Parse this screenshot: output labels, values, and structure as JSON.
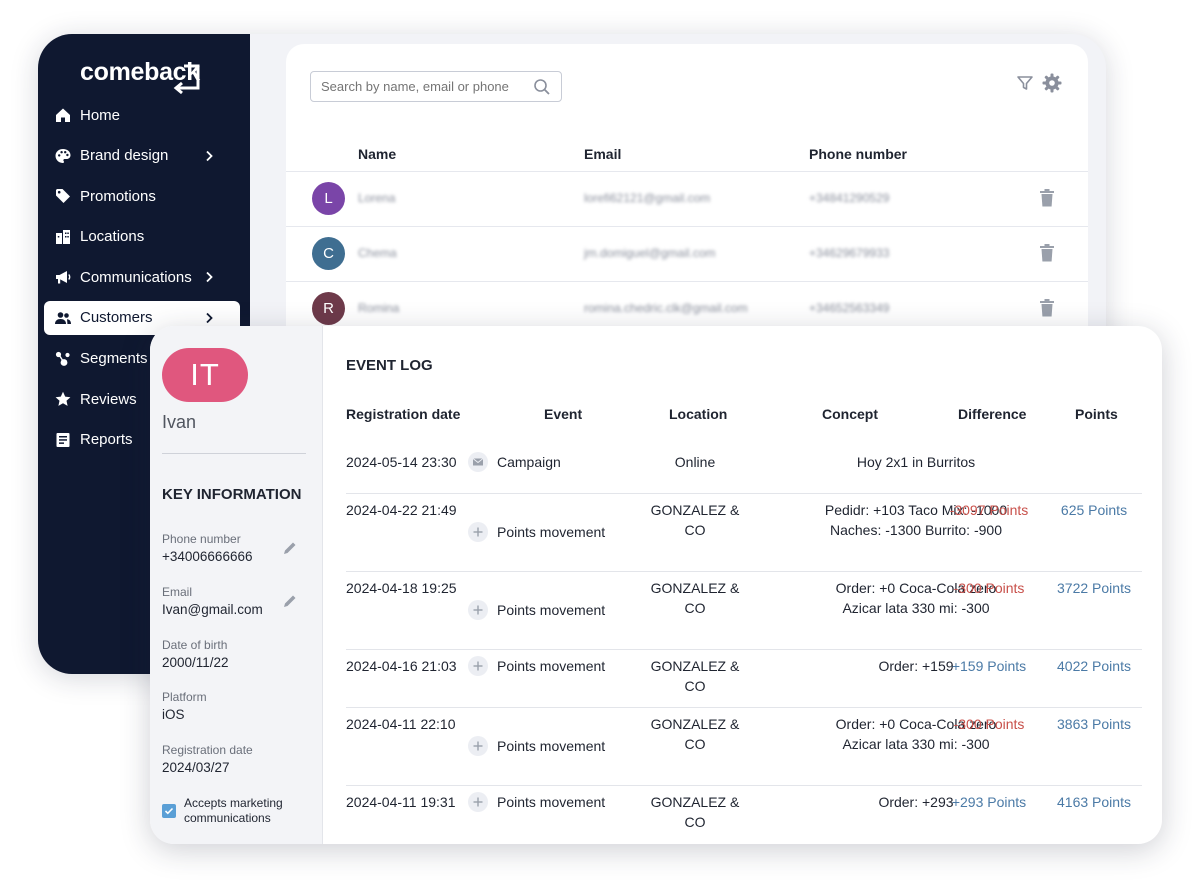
{
  "brand": {
    "logo_text": "comeback"
  },
  "colors": {
    "sidebar": "#0f1830",
    "initials_pill": "#e0577e",
    "negative": "#c8504a",
    "positive": "#4b7aa6",
    "checkbox": "#5a9fd6"
  },
  "sidebar": {
    "items": [
      {
        "label": "Home",
        "icon": "home-icon",
        "chevron": false,
        "active": false
      },
      {
        "label": "Brand design",
        "icon": "palette-icon",
        "chevron": true,
        "active": false
      },
      {
        "label": "Promotions",
        "icon": "tag-icon",
        "chevron": false,
        "active": false
      },
      {
        "label": "Locations",
        "icon": "building-icon",
        "chevron": false,
        "active": false
      },
      {
        "label": "Communications",
        "icon": "megaphone-icon",
        "chevron": true,
        "active": false
      },
      {
        "label": "Customers",
        "icon": "users-icon",
        "chevron": true,
        "active": true
      },
      {
        "label": "Segments",
        "icon": "segments-icon",
        "chevron": false,
        "active": false
      },
      {
        "label": "Reviews",
        "icon": "star-icon",
        "chevron": false,
        "active": false
      },
      {
        "label": "Reports",
        "icon": "report-icon",
        "chevron": false,
        "active": false
      }
    ]
  },
  "customers": {
    "search_placeholder": "Search by name, email or phone",
    "columns": {
      "name": "Name",
      "email": "Email",
      "phone": "Phone number"
    },
    "rows": [
      {
        "initial": "L",
        "color": "#7a45a8",
        "name": "Lorena",
        "email": "lorefi62121@gmail.com",
        "phone": "+34841290529"
      },
      {
        "initial": "C",
        "color": "#3f6e91",
        "name": "Chema",
        "email": "jm.domiguel@gmail.com",
        "phone": "+34629679933"
      },
      {
        "initial": "R",
        "color": "#6e3a4a",
        "name": "Romina",
        "email": "romina.chedric.clk@gmail.com",
        "phone": "+34652563349"
      }
    ]
  },
  "profile": {
    "initials": "IT",
    "name": "Ivan",
    "key_info_title": "KEY INFORMATION",
    "phone_label": "Phone number",
    "phone_value": "+34006666666",
    "email_label": "Email",
    "email_value": "Ivan@gmail.com",
    "dob_label": "Date of birth",
    "dob_value": "2000/11/22",
    "platform_label": "Platform",
    "platform_value": "iOS",
    "reg_label": "Registration date",
    "reg_value": "2024/03/27",
    "marketing_label": "Accepts marketing communications",
    "marketing_checked": true
  },
  "event_log": {
    "title": "EVENT LOG",
    "columns": {
      "date": "Registration date",
      "event": "Event",
      "location": "Location",
      "concept": "Concept",
      "difference": "Difference",
      "points": "Points"
    },
    "rows": [
      {
        "date": "2024-05-14 23:30",
        "event": "Campaign",
        "event_icon": "mail-icon",
        "location": "Online",
        "concept": [
          "Hoy 2x1 in Burritos"
        ],
        "difference": "",
        "points": ""
      },
      {
        "date": "2024-04-22 21:49",
        "event": "Points movement",
        "event_icon": "plus-icon",
        "location": "GONZALEZ & CO",
        "concept": [
          "Pedidr: +103 Taco Mix: -1000",
          "Naches: -1300 Burrito: -900"
        ],
        "difference": "-3097 Points",
        "points": "625 Points"
      },
      {
        "date": "2024-04-18 19:25",
        "event": "Points movement",
        "event_icon": "plus-icon",
        "location": "GONZALEZ & CO",
        "concept": [
          "Order: +0 Coca-Cola zero",
          "Azicar lata 330 mi: -300"
        ],
        "difference": "-300 Points",
        "points": "3722 Points"
      },
      {
        "date": "2024-04-16 21:03",
        "event": "Points movement",
        "event_icon": "plus-icon",
        "location": "GONZALEZ & CO",
        "concept": [
          "Order: +159"
        ],
        "difference": "+159 Points",
        "points": "4022 Points"
      },
      {
        "date": "2024-04-11 22:10",
        "event": "Points movement",
        "event_icon": "plus-icon",
        "location": "GONZALEZ & CO",
        "concept": [
          "Order: +0 Coca-Cola zero",
          "Azicar lata 330 mi: -300"
        ],
        "difference": "-300 Points",
        "points": "3863 Points"
      },
      {
        "date": "2024-04-11 19:31",
        "event": "Points movement",
        "event_icon": "plus-icon",
        "location": "GONZALEZ & CO",
        "concept": [
          "Order: +293"
        ],
        "difference": "+293 Points",
        "points": "4163 Points"
      }
    ]
  }
}
